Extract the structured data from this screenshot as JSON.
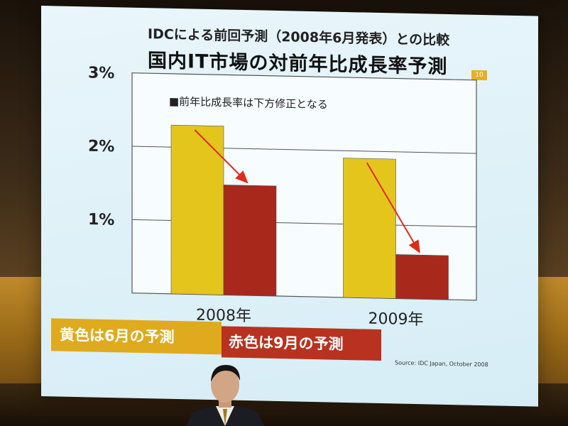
{
  "slide": {
    "title_line1": "IDCによる前回予測（2008年6月発表）との比較",
    "title_line2": "国内IT市場の対前年比成長率予測",
    "tag": "10",
    "legend_yellow": "黄色は6月の予測",
    "legend_red": "赤色は9月の予測",
    "source": "Source: IDC Japan, October 2008"
  },
  "chart_data": {
    "type": "bar",
    "title": "国内IT市場の対前年比成長率予測",
    "annotation": "■前年比成長率は下方修正となる",
    "categories": [
      "2008年",
      "2009年"
    ],
    "series": [
      {
        "name": "黄色は6月の予測",
        "color": "#e3c51c",
        "values": [
          2.3,
          1.9
        ]
      },
      {
        "name": "赤色は9月の予測",
        "color": "#a8281c",
        "values": [
          1.5,
          0.6
        ]
      }
    ],
    "ylim": [
      0,
      3
    ],
    "yticks": [
      "1%",
      "2%",
      "3%"
    ],
    "ytick_values": [
      1,
      2,
      3
    ],
    "grid": true,
    "arrow_color": "#e02a1a"
  }
}
